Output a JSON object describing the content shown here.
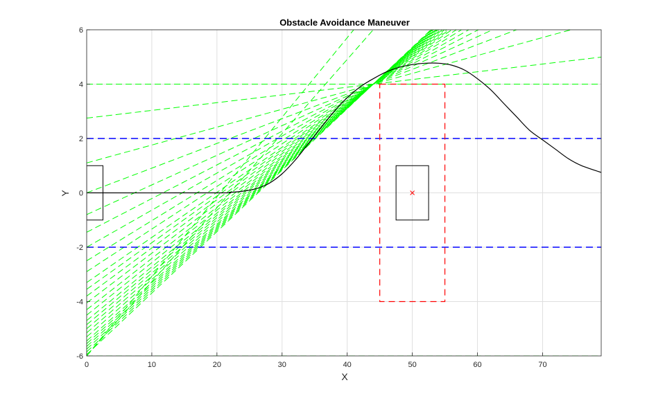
{
  "chart_data": {
    "type": "line",
    "title": "Obstacle Avoidance Maneuver",
    "xlabel": "X",
    "ylabel": "Y",
    "xlim": [
      0,
      79
    ],
    "ylim": [
      -6,
      6
    ],
    "x_ticks": [
      0,
      10,
      20,
      30,
      40,
      50,
      60,
      70
    ],
    "y_ticks": [
      -6,
      -4,
      -2,
      0,
      2,
      4,
      6
    ],
    "grid": true,
    "colors": {
      "trajectory": "#000000",
      "safety_zone": "#ff0000",
      "lane_boundary": "#0000ff",
      "candidate_lines": "#00ff00",
      "ego_box": "#000000",
      "obstacle_box": "#000000"
    },
    "ego_vehicle": {
      "x": [
        0,
        2.5
      ],
      "y": [
        -1,
        1
      ]
    },
    "obstacle": {
      "center": [
        50,
        0
      ],
      "x": [
        47.5,
        52.5
      ],
      "y": [
        -1,
        1
      ]
    },
    "safety_zone": {
      "x": [
        45,
        55
      ],
      "y": [
        -4,
        4
      ]
    },
    "lane_boundaries": [
      2,
      -2
    ],
    "horizontal_guides": [
      4,
      -6
    ],
    "trajectory": {
      "x": [
        0,
        20,
        22,
        24,
        26,
        28,
        30,
        32,
        34,
        36,
        38,
        40,
        42,
        44,
        46,
        48,
        50,
        52,
        54,
        56,
        58,
        60,
        62,
        64,
        66,
        68,
        70,
        72,
        74,
        76,
        79
      ],
      "y": [
        0,
        0,
        0.02,
        0.06,
        0.15,
        0.35,
        0.7,
        1.2,
        1.8,
        2.4,
        3.0,
        3.5,
        3.9,
        4.2,
        4.45,
        4.62,
        4.72,
        4.77,
        4.77,
        4.7,
        4.52,
        4.2,
        3.8,
        3.3,
        2.8,
        2.3,
        1.95,
        1.6,
        1.25,
        1.0,
        0.75
      ]
    },
    "candidate_lines": {
      "pivot": [
        44,
        4
      ],
      "left_intercepts_y": [
        2.75,
        1.1,
        0.0,
        -0.8,
        -1.45,
        -2.0,
        -2.5,
        -2.9,
        -3.3,
        -3.55,
        -3.8,
        -4.05,
        -4.3,
        -4.5,
        -4.7,
        -4.85,
        -5.0,
        -5.15,
        -5.3,
        -5.45,
        -5.55,
        -5.65,
        -5.75,
        -5.85,
        -5.95
      ],
      "direct_crossings": [
        {
          "p": [
            0,
            -6
          ],
          "q": [
            41,
            6
          ]
        },
        {
          "p": [
            0,
            -6
          ],
          "q": [
            44,
            6
          ]
        }
      ]
    }
  }
}
